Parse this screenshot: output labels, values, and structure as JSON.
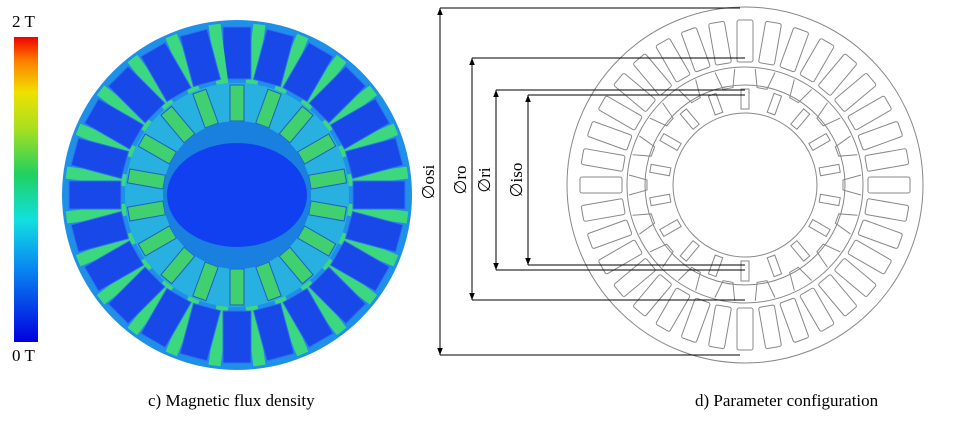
{
  "colorbar": {
    "max_label": "2 T",
    "min_label": "0 T"
  },
  "panels": [
    {
      "caption": "c)  Magnetic flux density"
    },
    {
      "caption": "d)  Parameter configuration",
      "dimensions": [
        "∅osi",
        "∅ro",
        "∅ri",
        "∅iso"
      ]
    }
  ]
}
